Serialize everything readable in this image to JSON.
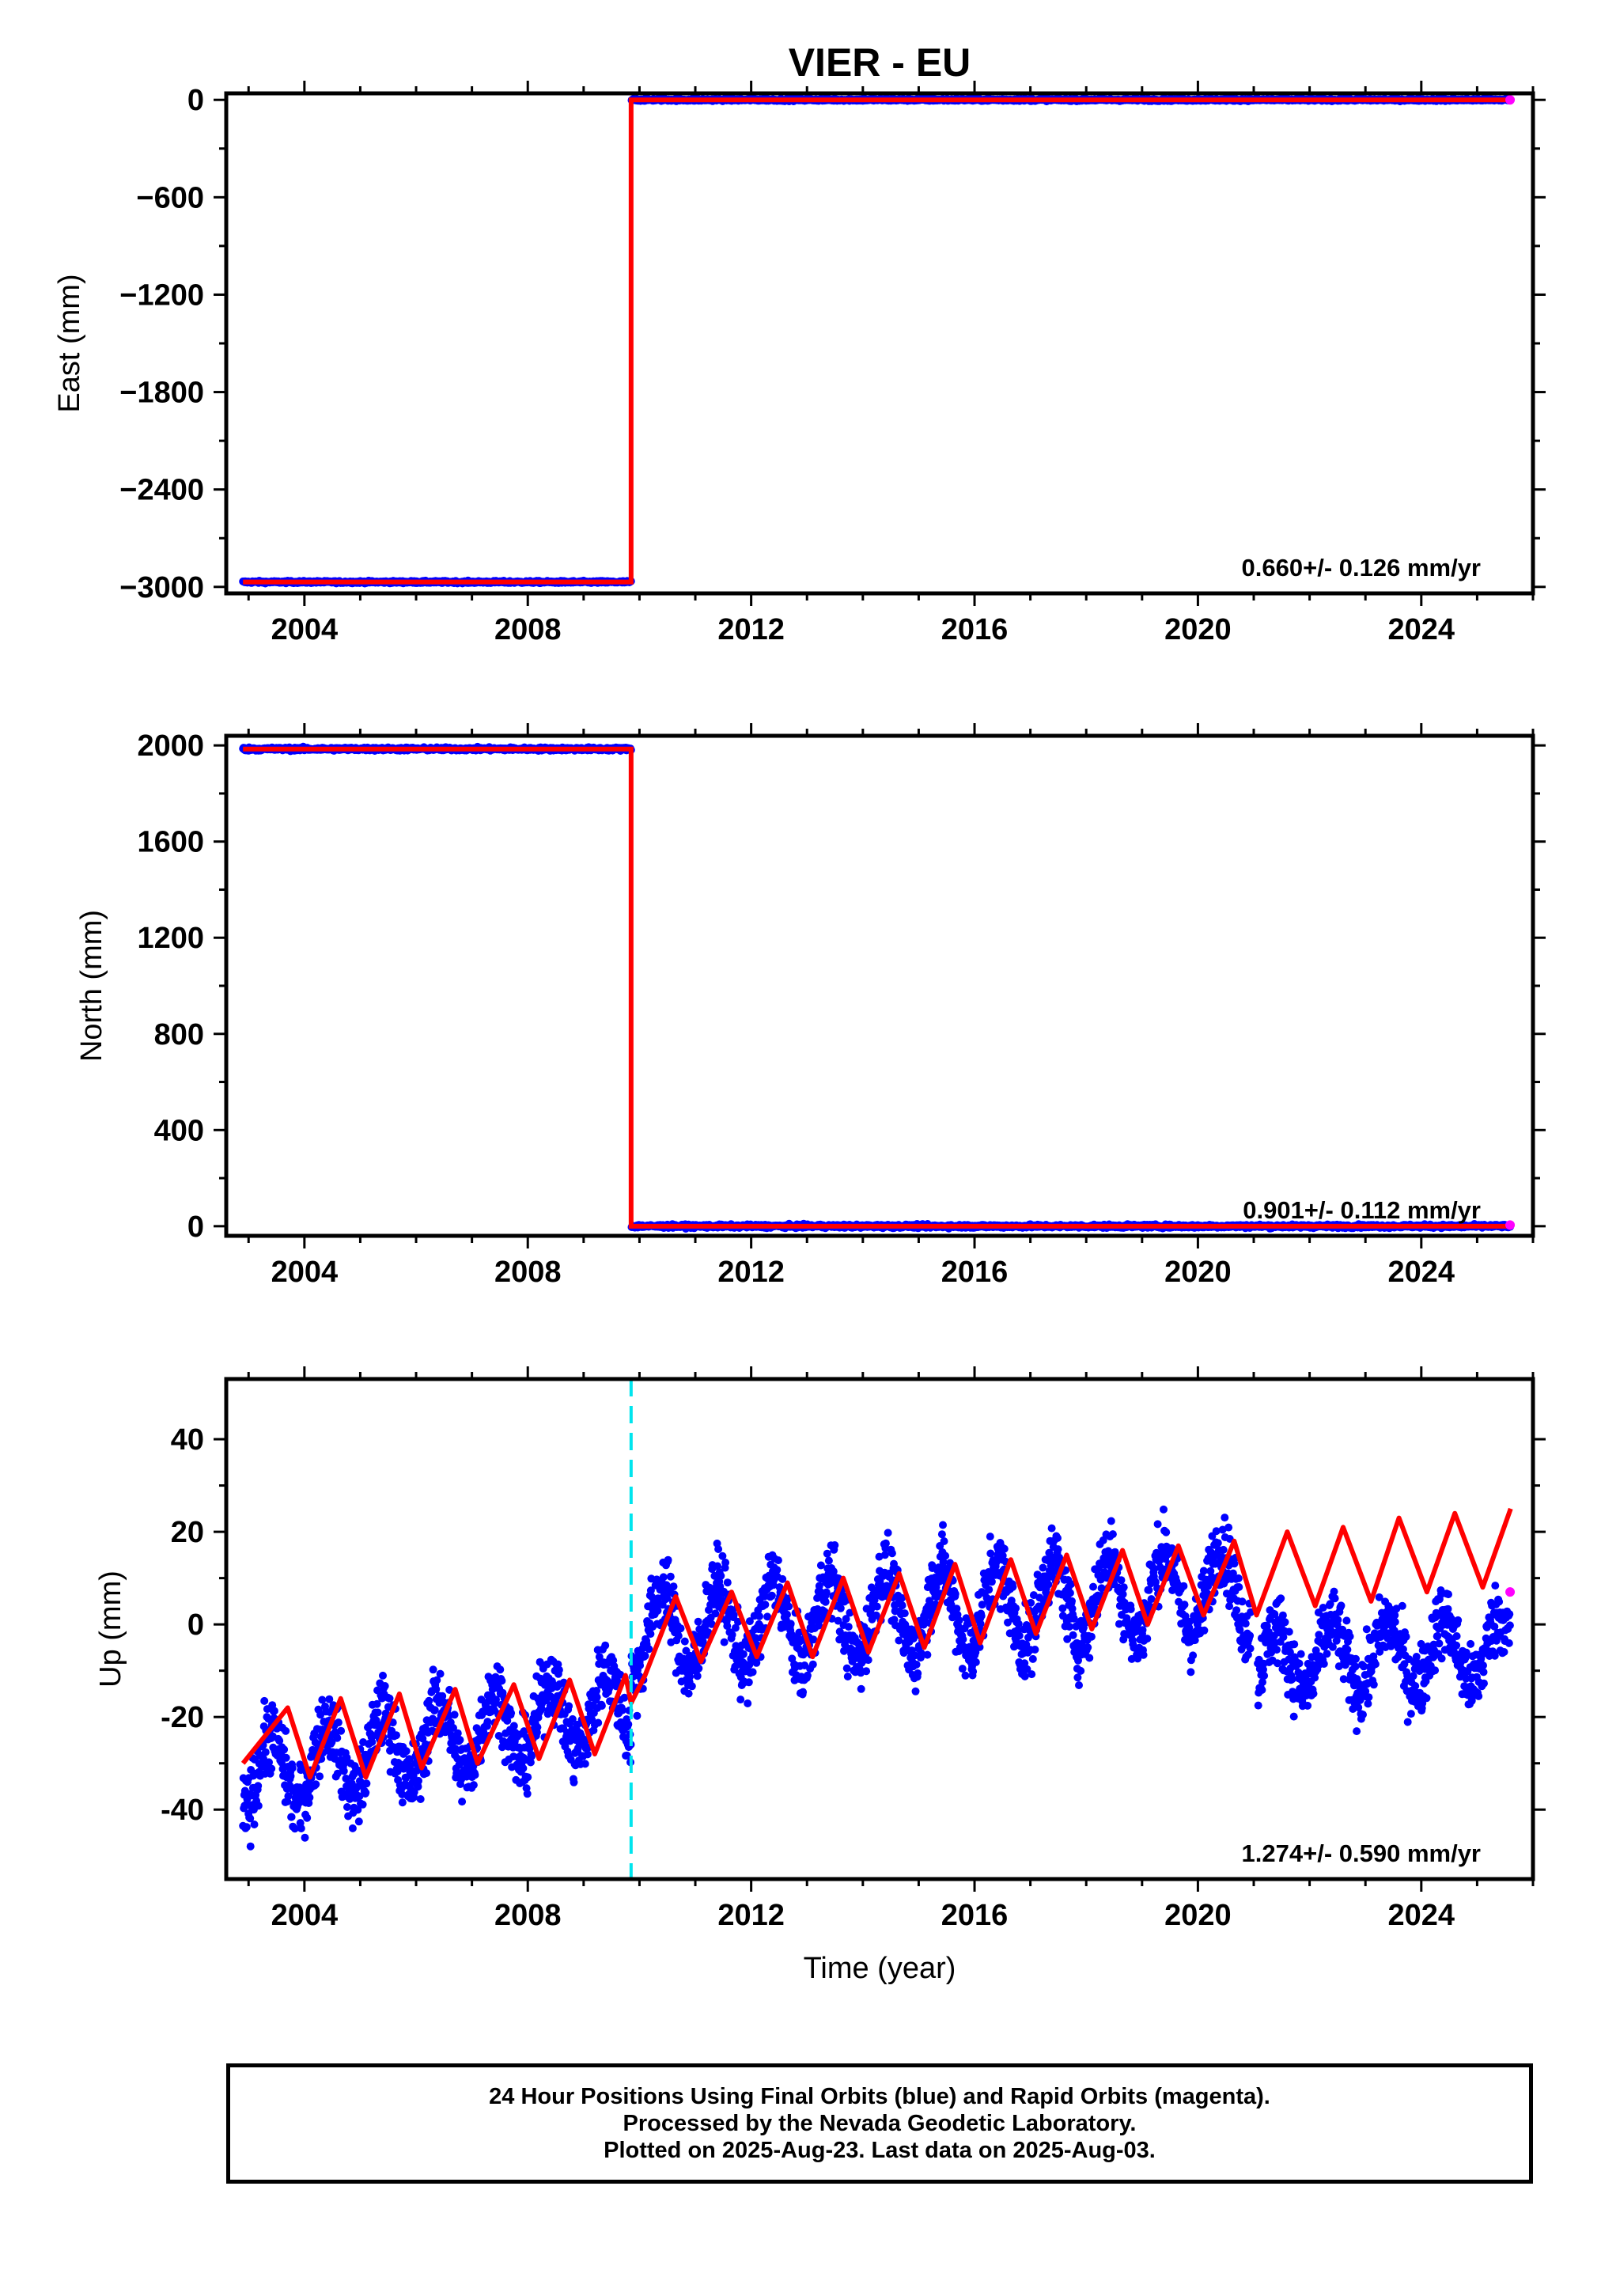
{
  "title": "VIER - EU",
  "xlabel": "Time (year)",
  "caption": {
    "line1": "24 Hour Positions Using Final Orbits (blue) and Rapid Orbits (magenta).",
    "line2": "Processed by the Nevada Geodetic Laboratory.",
    "line3": "Plotted on 2025-Aug-23. Last data on 2025-Aug-03."
  },
  "colors": {
    "final": "#0000ff",
    "rapid": "#ff00ff",
    "model": "#ff0000",
    "offset_line": "#00e5ee"
  },
  "chart_data": [
    {
      "type": "scatter",
      "component": "East",
      "ylabel": "East (mm)",
      "xlim": [
        2002.6,
        2026.0
      ],
      "ylim": [
        -3040,
        40
      ],
      "xticks": [
        2004,
        2008,
        2012,
        2016,
        2020,
        2024
      ],
      "yticks": [
        0,
        -600,
        -1200,
        -1800,
        -2400,
        -3000
      ],
      "ytick_labels": [
        "0",
        "−600",
        "−1200",
        "−1800",
        "−2400",
        "−3000"
      ],
      "rate_label": "0.660+/- 0.126 mm/yr",
      "data_start": 2002.9,
      "data_end": 2025.59,
      "offset_epoch": 2009.85,
      "before_offset_value": -2970,
      "after_offset_value": 0,
      "last_rapid_point": [
        2025.59,
        0
      ]
    },
    {
      "type": "scatter",
      "component": "North",
      "ylabel": "North (mm)",
      "xlim": [
        2002.6,
        2026.0
      ],
      "ylim": [
        -40,
        2040
      ],
      "xticks": [
        2004,
        2008,
        2012,
        2016,
        2020,
        2024
      ],
      "yticks": [
        2000,
        1600,
        1200,
        800,
        400,
        0
      ],
      "ytick_labels": [
        "2000",
        "1600",
        "1200",
        "800",
        "400",
        "0"
      ],
      "rate_label": "0.901+/- 0.112 mm/yr",
      "data_start": 2002.9,
      "data_end": 2025.59,
      "offset_epoch": 2009.85,
      "before_offset_value": 1985,
      "after_offset_value": 0,
      "last_rapid_point": [
        2025.59,
        5
      ]
    },
    {
      "type": "scatter",
      "component": "Up",
      "ylabel": "Up (mm)",
      "xlabel": "Time (year)",
      "xlim": [
        2002.6,
        2026.0
      ],
      "ylim": [
        -55,
        53
      ],
      "xticks": [
        2004,
        2008,
        2012,
        2016,
        2020,
        2024
      ],
      "yticks": [
        40,
        20,
        0,
        -20,
        -40
      ],
      "ytick_labels": [
        "40",
        "20",
        "0",
        "-20",
        "-40"
      ],
      "rate_label": "1.274+/- 0.590 mm/yr",
      "offset_epoch": 2009.85,
      "data_start": 2002.9,
      "data_end": 2025.59,
      "gap_epoch": 2021.05,
      "last_rapid_point": [
        2025.59,
        7
      ],
      "model_x": [
        2002.9,
        2003.7,
        2004.1,
        2004.65,
        2005.1,
        2005.7,
        2006.1,
        2006.7,
        2007.1,
        2007.75,
        2008.2,
        2008.75,
        2009.2,
        2009.75,
        2009.85,
        2010.1,
        2010.65,
        2011.1,
        2011.65,
        2012.1,
        2012.65,
        2013.1,
        2013.65,
        2014.1,
        2014.65,
        2015.1,
        2015.65,
        2016.1,
        2016.65,
        2017.1,
        2017.65,
        2018.1,
        2018.65,
        2019.1,
        2019.65,
        2020.1,
        2020.65,
        2021.05,
        2021.6,
        2022.1,
        2022.6,
        2023.1,
        2023.6,
        2024.1,
        2024.6,
        2025.1,
        2025.6
      ],
      "model_y": [
        -30,
        -18,
        -33,
        -16,
        -33,
        -15,
        -31,
        -14,
        -30,
        -13,
        -29,
        -12,
        -28,
        -11,
        -17,
        -11,
        6,
        -8,
        7,
        -7,
        9,
        -7,
        10,
        -6,
        11,
        -5,
        13,
        -4,
        14,
        -2,
        15,
        -1,
        16,
        0,
        17,
        2,
        18,
        2,
        20,
        4,
        21,
        5,
        23,
        7,
        24,
        8,
        25
      ]
    }
  ]
}
